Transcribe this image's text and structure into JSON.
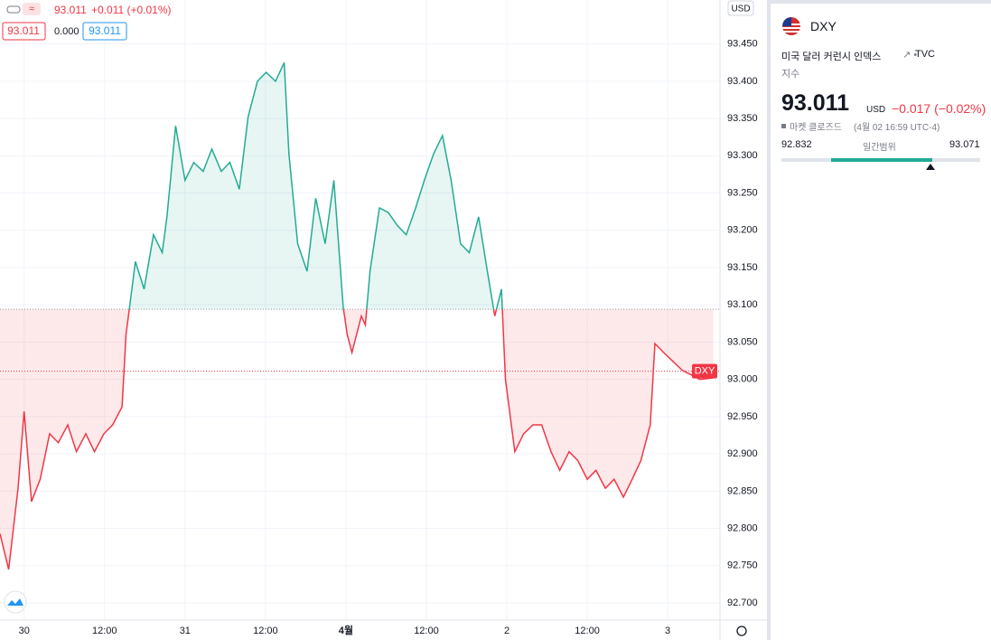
{
  "chart_data": {
    "type": "baseline-line",
    "x": [
      -3.6,
      -2.3,
      -0.9,
      0,
      1.1,
      2.4,
      3.8,
      5.1,
      6.5,
      7.8,
      9.2,
      10.5,
      11.9,
      13.2,
      14.6,
      15.2,
      15.9,
      16.6,
      17.9,
      19.3,
      20.6,
      21.3,
      22.6,
      24.0,
      25.3,
      26.7,
      28.0,
      29.4,
      30.7,
      32.1,
      33.4,
      34.8,
      36.1,
      37.5,
      38.8,
      39.5,
      40.8,
      42.2,
      43.5,
      44.9,
      46.2,
      47.6,
      48.2,
      48.9,
      50.3,
      50.9,
      51.6,
      53.0,
      54.3,
      55.7,
      57.0,
      58.4,
      59.7,
      61.1,
      62.4,
      63.7,
      65.1,
      66.4,
      67.8,
      69.1,
      70.2,
      71.2,
      71.8,
      73.2,
      74.5,
      75.9,
      77.2,
      78.6,
      79.9,
      81.3,
      82.6,
      84.0,
      85.3,
      86.7,
      88.0,
      89.4,
      90.7,
      92.0,
      93.4,
      94.1,
      95.4,
      96.8,
      98.2,
      99.5,
      100.8,
      102.8
    ],
    "series": [
      {
        "name": "DXY",
        "color_up": "#22ab94",
        "color_down": "#f23645",
        "values": [
          92.793,
          92.745,
          92.854,
          92.957,
          92.836,
          92.866,
          92.927,
          92.915,
          92.939,
          92.903,
          92.927,
          92.903,
          92.927,
          92.939,
          92.963,
          93.06,
          93.109,
          93.158,
          93.121,
          93.194,
          93.17,
          93.218,
          93.34,
          93.267,
          93.291,
          93.279,
          93.309,
          93.279,
          93.291,
          93.255,
          93.352,
          93.4,
          93.412,
          93.4,
          93.425,
          93.303,
          93.182,
          93.145,
          93.243,
          93.182,
          93.267,
          93.097,
          93.06,
          93.036,
          93.085,
          93.073,
          93.145,
          93.23,
          93.224,
          93.206,
          93.194,
          93.23,
          93.267,
          93.303,
          93.327,
          93.267,
          93.182,
          93.17,
          93.218,
          93.145,
          93.085,
          93.121,
          93.0,
          92.903,
          92.927,
          92.939,
          92.939,
          92.903,
          92.878,
          92.903,
          92.891,
          92.866,
          92.878,
          92.854,
          92.866,
          92.842,
          92.866,
          92.891,
          92.939,
          93.048,
          93.036,
          93.024,
          93.012,
          93.006,
          93.0,
          93.002
        ]
      }
    ],
    "baseline": 93.094,
    "last_price": 93.011,
    "xlim": [
      -3.6,
      103.8
    ],
    "xticks": [
      {
        "value": 0,
        "label": "30"
      },
      {
        "value": 12,
        "label": "12:00"
      },
      {
        "value": 24,
        "label": "31"
      },
      {
        "value": 36,
        "label": "12:00"
      },
      {
        "value": 48,
        "label": "4월"
      },
      {
        "value": 60,
        "label": "12:00"
      },
      {
        "value": 72,
        "label": "2"
      },
      {
        "value": 84,
        "label": "12:00"
      },
      {
        "value": 96,
        "label": "3"
      }
    ],
    "ylim": [
      92.677,
      93.509
    ],
    "yticks": [
      {
        "value": 92.7,
        "label": "92.700"
      },
      {
        "value": 92.75,
        "label": "92.750"
      },
      {
        "value": 92.8,
        "label": "92.800"
      },
      {
        "value": 92.85,
        "label": "92.850"
      },
      {
        "value": 92.9,
        "label": "92.900"
      },
      {
        "value": 92.95,
        "label": "92.950"
      },
      {
        "value": 93.0,
        "label": "93.000"
      },
      {
        "value": 93.05,
        "label": "93.050"
      },
      {
        "value": 93.1,
        "label": "93.100"
      },
      {
        "value": 93.15,
        "label": "93.150"
      },
      {
        "value": 93.2,
        "label": "93.200"
      },
      {
        "value": 93.25,
        "label": "93.250"
      },
      {
        "value": 93.3,
        "label": "93.300"
      },
      {
        "value": 93.35,
        "label": "93.350"
      },
      {
        "value": 93.4,
        "label": "93.400"
      },
      {
        "value": 93.45,
        "label": "93.450"
      }
    ],
    "grid": true,
    "currency": "USD",
    "price_tag": "DXY"
  },
  "legend": {
    "price": "93.011",
    "change": "+0.011 (+0.01%)",
    "box1": "93.011",
    "box2": "0.000",
    "box3": "93.011"
  },
  "sidebar": {
    "symbol": "DXY",
    "name": "미국 달러 커런시 인덱스",
    "exchange": "TVC",
    "kind": "지수",
    "price": "93.011",
    "currency": "USD",
    "change": "−0.017 (−0.02%)",
    "status": "마켓 클로즈드",
    "time": "(4월 02 16:59 UTC-4)",
    "range_label": "일간범위",
    "range_low": 92.832,
    "range_high": 93.071,
    "range_current": 93.011
  }
}
